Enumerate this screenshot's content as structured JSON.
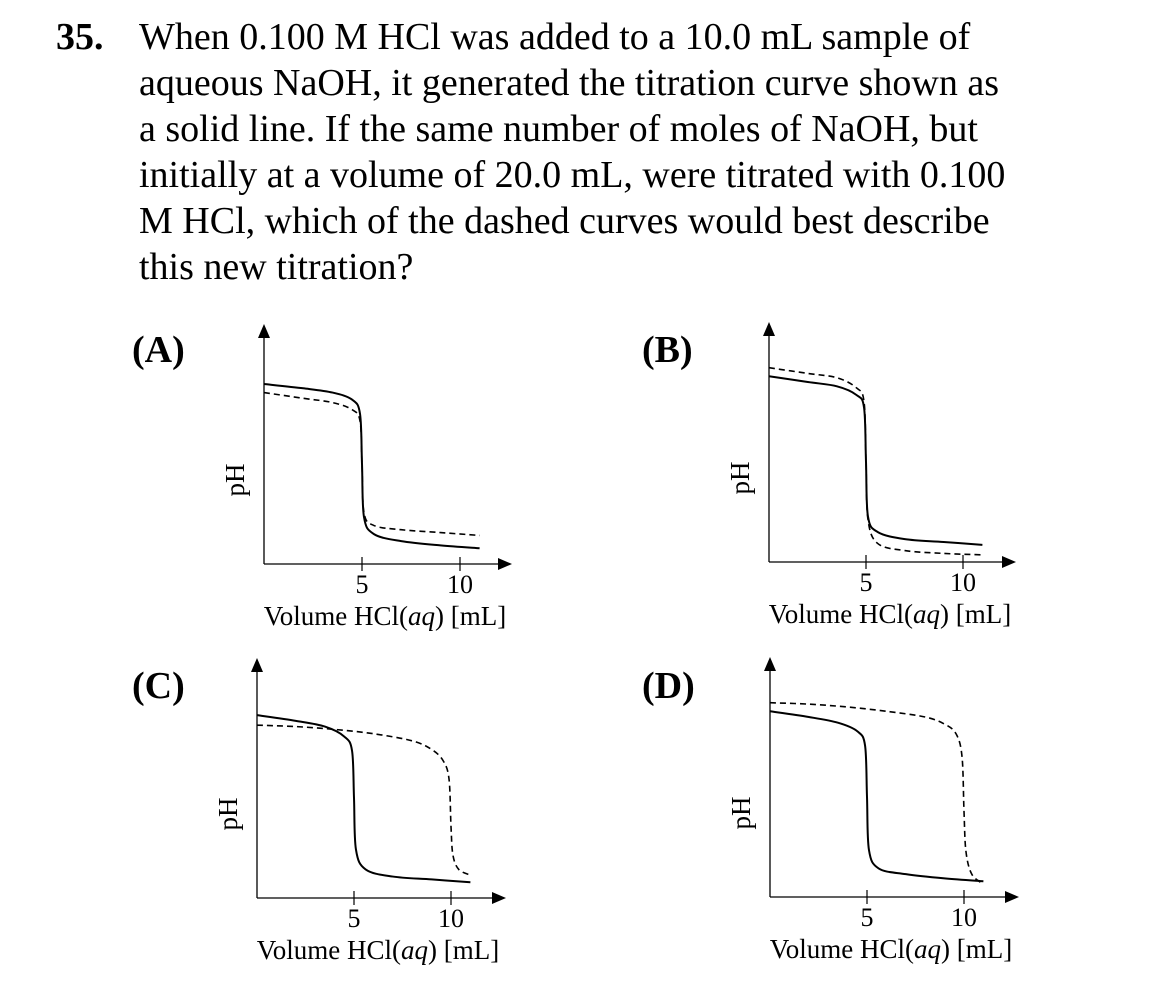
{
  "question": {
    "number": "35.",
    "lines": [
      "When 0.100 M HCl was added to a 10.0 mL sample of",
      "aqueous NaOH, it generated the titration curve shown as",
      "a solid line.  If the same number of moles of NaOH, but",
      "initially at a volume of 20.0 mL, were titrated with 0.100",
      "M HCl, which of the dashed curves would best describe",
      "this new titration?"
    ]
  },
  "chart_data": [
    {
      "type": "line",
      "label": "(A)",
      "ylabel": "pH",
      "xlabel_parts": [
        "Volume HCl(",
        "aq",
        ") [mL]"
      ],
      "xticks": [
        5,
        10
      ],
      "xlim": [
        0,
        12.5
      ],
      "ylim": [
        0,
        14
      ],
      "series": [
        {
          "style": "solid",
          "x": [
            0,
            2,
            3.5,
            4.5,
            4.9,
            5.0,
            5.1,
            5.6,
            7,
            9,
            11
          ],
          "y": [
            12.6,
            12.3,
            12.0,
            11.5,
            10.5,
            7.0,
            3.3,
            2.1,
            1.6,
            1.3,
            1.1
          ]
        },
        {
          "style": "dashed",
          "x": [
            0,
            2,
            3.5,
            4.5,
            4.9,
            5.0,
            5.1,
            5.6,
            7,
            9,
            11
          ],
          "y": [
            12.0,
            11.6,
            11.3,
            10.8,
            10.0,
            7.0,
            3.6,
            2.7,
            2.4,
            2.2,
            2.0
          ]
        }
      ]
    },
    {
      "type": "line",
      "label": "(B)",
      "ylabel": "pH",
      "xlabel_parts": [
        "Volume HCl(",
        "aq",
        ") [mL]"
      ],
      "xticks": [
        5,
        10
      ],
      "xlim": [
        0,
        12.5
      ],
      "ylim": [
        0,
        14
      ],
      "series": [
        {
          "style": "solid",
          "x": [
            0,
            2,
            3.5,
            4.5,
            4.9,
            5.0,
            5.1,
            5.6,
            7,
            9,
            11
          ],
          "y": [
            13.0,
            12.6,
            12.3,
            11.7,
            10.8,
            7.0,
            3.2,
            2.1,
            1.6,
            1.4,
            1.2
          ]
        },
        {
          "style": "dashed",
          "x": [
            0,
            2,
            3.5,
            4.5,
            4.9,
            5.0,
            5.1,
            5.6,
            7,
            9,
            11
          ],
          "y": [
            13.6,
            13.2,
            12.9,
            12.2,
            11.2,
            7.0,
            3.0,
            1.3,
            0.8,
            0.6,
            0.5
          ]
        }
      ]
    },
    {
      "type": "line",
      "label": "(C)",
      "ylabel": "pH",
      "xlabel_parts": [
        "Volume HCl(",
        "aq",
        ") [mL]"
      ],
      "xticks": [
        5,
        10
      ],
      "xlim": [
        0,
        12.5
      ],
      "ylim": [
        0,
        14
      ],
      "series": [
        {
          "style": "solid",
          "x": [
            0,
            2,
            3.5,
            4.5,
            4.9,
            5.0,
            5.1,
            5.6,
            7,
            9,
            11
          ],
          "y": [
            12.8,
            12.4,
            12.0,
            11.3,
            10.3,
            7.0,
            3.4,
            2.0,
            1.5,
            1.3,
            1.1
          ]
        },
        {
          "style": "dashed",
          "x": [
            0,
            2,
            4,
            6,
            8,
            9,
            9.6,
            9.9,
            10.0,
            10.1,
            10.4,
            11
          ],
          "y": [
            12.1,
            12.0,
            11.8,
            11.5,
            11.0,
            10.4,
            9.6,
            8.3,
            5.0,
            3.0,
            2.0,
            1.6
          ]
        }
      ]
    },
    {
      "type": "line",
      "label": "(D)",
      "ylabel": "pH",
      "xlabel_parts": [
        "Volume HCl(",
        "aq",
        ") [mL]"
      ],
      "xticks": [
        5,
        10
      ],
      "xlim": [
        0,
        12.5
      ],
      "ylim": [
        0,
        14
      ],
      "series": [
        {
          "style": "solid",
          "x": [
            0,
            2,
            3.5,
            4.5,
            4.9,
            5.0,
            5.1,
            5.6,
            7,
            9,
            11
          ],
          "y": [
            13.0,
            12.6,
            12.2,
            11.6,
            10.6,
            7.0,
            3.3,
            2.0,
            1.6,
            1.3,
            1.1
          ]
        },
        {
          "style": "dashed",
          "x": [
            0,
            2,
            4,
            6,
            8,
            9,
            9.6,
            9.9,
            10.0,
            10.1,
            10.4,
            11
          ],
          "y": [
            13.6,
            13.5,
            13.3,
            13.0,
            12.6,
            12.1,
            11.4,
            9.8,
            6.0,
            3.2,
            1.6,
            0.9
          ]
        }
      ]
    }
  ]
}
